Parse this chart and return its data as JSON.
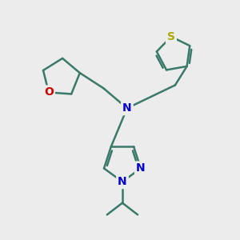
{
  "bg_color": "#ececec",
  "bond_color": "#3a7a6a",
  "bond_width": 1.8,
  "N_color": "#0000cc",
  "O_color": "#cc0000",
  "S_color": "#aaaa00",
  "font_size_atom": 9,
  "fig_width": 3.0,
  "fig_height": 3.0,
  "dpi": 100,
  "xlim": [
    0,
    10
  ],
  "ylim": [
    0,
    10
  ]
}
